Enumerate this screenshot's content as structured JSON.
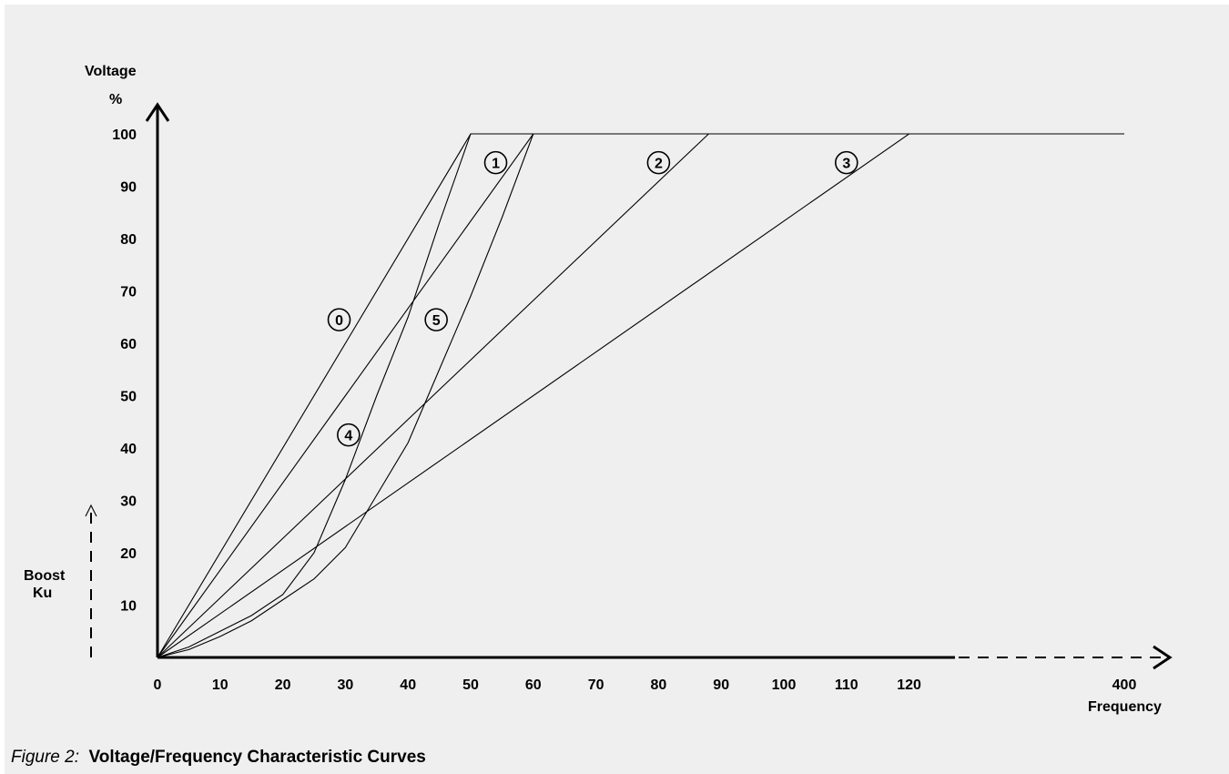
{
  "chart_data": {
    "type": "line",
    "title": "",
    "ylabel": "Voltage",
    "ylabel_unit": "%",
    "xlabel": "Frequency",
    "boost_label": [
      "Boost",
      "Ku"
    ],
    "x_ticks": [
      "0",
      "10",
      "20",
      "30",
      "40",
      "50",
      "60",
      "70",
      "80",
      "90",
      "100",
      "110",
      "120",
      "400"
    ],
    "y_ticks": [
      "10",
      "20",
      "30",
      "40",
      "50",
      "60",
      "70",
      "80",
      "90",
      "100"
    ],
    "xlim": [
      0,
      400
    ],
    "ylim": [
      0,
      100
    ],
    "x_axis_break": "dashed between 120 and 400",
    "grid": false,
    "series": [
      {
        "name": "0",
        "x": [
          0,
          50,
          400
        ],
        "y": [
          0,
          100,
          100
        ]
      },
      {
        "name": "1",
        "x": [
          0,
          60,
          400
        ],
        "y": [
          0,
          100,
          100
        ]
      },
      {
        "name": "2",
        "x": [
          0,
          88,
          400
        ],
        "y": [
          0,
          100,
          100
        ]
      },
      {
        "name": "3",
        "x": [
          0,
          120,
          400
        ],
        "y": [
          0,
          100,
          100
        ]
      },
      {
        "name": "4",
        "x": [
          0,
          5,
          10,
          15,
          20,
          25,
          30,
          35,
          40,
          45,
          50,
          400
        ],
        "y": [
          0,
          2,
          5,
          8,
          12,
          20,
          34,
          50,
          65,
          83,
          100,
          100
        ]
      },
      {
        "name": "5",
        "x": [
          0,
          5,
          10,
          15,
          20,
          25,
          30,
          35,
          40,
          45,
          50,
          55,
          60,
          400
        ],
        "y": [
          0,
          1.5,
          4,
          7,
          11,
          15,
          21,
          31,
          41,
          55,
          69,
          84,
          100,
          100
        ]
      }
    ]
  },
  "caption": {
    "prefix": "Figure 2:",
    "title": "Voltage/Frequency Characteristic Curves"
  }
}
